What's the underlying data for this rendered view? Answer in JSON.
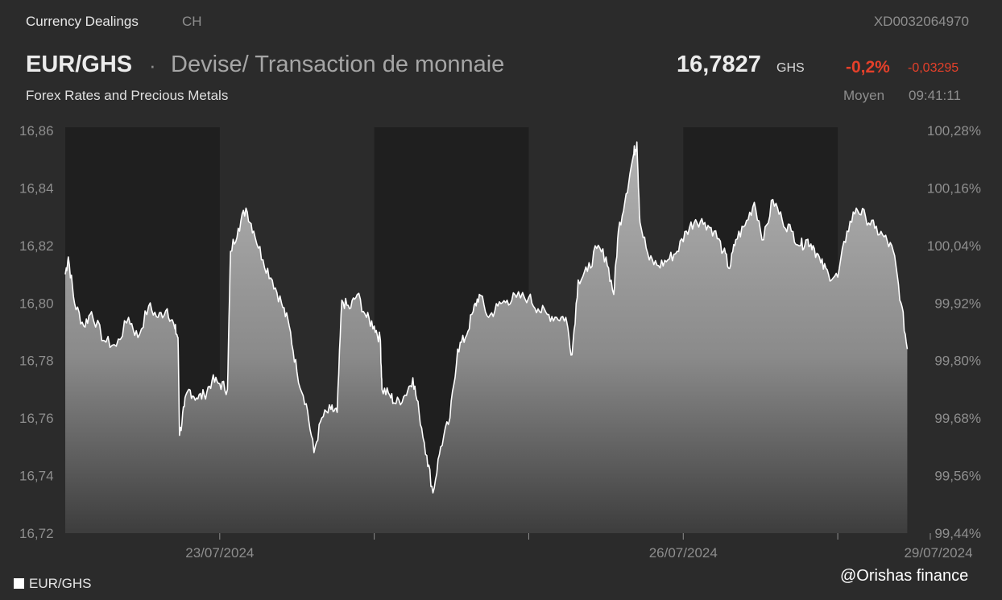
{
  "header": {
    "category": "Currency Dealings",
    "exchange": "CH",
    "isin": "XD0032064970",
    "pair": "EUR/GHS",
    "separator": "·",
    "instrument_type": "Devise/ Transaction de monnaie",
    "subtitle": "Forex Rates and Precious Metals",
    "price": "16,7827",
    "currency": "GHS",
    "change_pct": "-0,2%",
    "change_abs": "-0,03295",
    "price_type": "Moyen",
    "time": "09:41:11"
  },
  "colors": {
    "background": "#2b2b2b",
    "shade_band": "#1f1f1f",
    "line": "#ffffff",
    "negative": "#e5402a",
    "muted_text": "#8e8e8e"
  },
  "watermark": "@Orishas finance",
  "chart_data": {
    "type": "area",
    "ylim": [
      16.72,
      16.86
    ],
    "y_ticks_left": [
      "16,86",
      "16,84",
      "16,82",
      "16,80",
      "16,78",
      "16,76",
      "16,74",
      "16,72"
    ],
    "y_ticks_right": [
      "100,28%",
      "100,16%",
      "100,04%",
      "99,92%",
      "99,80%",
      "99,68%",
      "99,56%",
      "99,44%"
    ],
    "x_tick_labels": [
      {
        "label": "23/07/2024",
        "session": 1
      },
      {
        "label": "26/07/2024",
        "session": 4
      },
      {
        "label": "29/07/2024",
        "session": 5.9
      }
    ],
    "sessions": 5.5,
    "shaded_sessions": [
      0,
      2,
      4
    ],
    "legend": [
      {
        "name": "EUR/GHS",
        "color": "#ffffff"
      }
    ],
    "series": [
      {
        "name": "EUR/GHS",
        "anchors": [
          [
            0.0,
            16.81
          ],
          [
            0.02,
            16.816
          ],
          [
            0.06,
            16.8
          ],
          [
            0.12,
            16.792
          ],
          [
            0.17,
            16.797
          ],
          [
            0.25,
            16.787
          ],
          [
            0.33,
            16.785
          ],
          [
            0.41,
            16.795
          ],
          [
            0.47,
            16.788
          ],
          [
            0.54,
            16.799
          ],
          [
            0.6,
            16.795
          ],
          [
            0.66,
            16.798
          ],
          [
            0.71,
            16.791
          ],
          [
            0.73,
            16.788
          ],
          [
            0.74,
            16.754
          ],
          [
            0.77,
            16.764
          ],
          [
            0.8,
            16.77
          ],
          [
            0.85,
            16.767
          ],
          [
            0.9,
            16.768
          ],
          [
            0.95,
            16.773
          ],
          [
            1.0,
            16.772
          ],
          [
            1.05,
            16.77
          ],
          [
            1.07,
            16.818
          ],
          [
            1.12,
            16.826
          ],
          [
            1.17,
            16.833
          ],
          [
            1.22,
            16.825
          ],
          [
            1.28,
            16.815
          ],
          [
            1.34,
            16.808
          ],
          [
            1.4,
            16.8
          ],
          [
            1.45,
            16.792
          ],
          [
            1.5,
            16.776
          ],
          [
            1.56,
            16.765
          ],
          [
            1.61,
            16.748
          ],
          [
            1.66,
            16.76
          ],
          [
            1.72,
            16.763
          ],
          [
            1.76,
            16.762
          ],
          [
            1.79,
            16.801
          ],
          [
            1.84,
            16.798
          ],
          [
            1.89,
            16.803
          ],
          [
            1.95,
            16.795
          ],
          [
            2.0,
            16.792
          ],
          [
            2.04,
            16.787
          ],
          [
            2.05,
            16.77
          ],
          [
            2.1,
            16.768
          ],
          [
            2.14,
            16.765
          ],
          [
            2.2,
            16.768
          ],
          [
            2.25,
            16.774
          ],
          [
            2.29,
            16.762
          ],
          [
            2.34,
            16.747
          ],
          [
            2.38,
            16.734
          ],
          [
            2.43,
            16.75
          ],
          [
            2.49,
            16.76
          ],
          [
            2.54,
            16.784
          ],
          [
            2.59,
            16.788
          ],
          [
            2.64,
            16.797
          ],
          [
            2.68,
            16.803
          ],
          [
            2.74,
            16.795
          ],
          [
            2.8,
            16.799
          ],
          [
            2.86,
            16.801
          ],
          [
            2.92,
            16.802
          ],
          [
            3.0,
            16.802
          ],
          [
            3.06,
            16.798
          ],
          [
            3.12,
            16.796
          ],
          [
            3.18,
            16.795
          ],
          [
            3.24,
            16.795
          ],
          [
            3.28,
            16.782
          ],
          [
            3.32,
            16.808
          ],
          [
            3.38,
            16.811
          ],
          [
            3.44,
            16.819
          ],
          [
            3.5,
            16.816
          ],
          [
            3.55,
            16.803
          ],
          [
            3.58,
            16.825
          ],
          [
            3.63,
            16.838
          ],
          [
            3.68,
            16.852
          ],
          [
            3.7,
            16.856
          ],
          [
            3.72,
            16.828
          ],
          [
            3.78,
            16.815
          ],
          [
            3.84,
            16.813
          ],
          [
            3.9,
            16.815
          ],
          [
            3.96,
            16.818
          ],
          [
            4.02,
            16.825
          ],
          [
            4.08,
            16.829
          ],
          [
            4.14,
            16.828
          ],
          [
            4.2,
            16.825
          ],
          [
            4.26,
            16.818
          ],
          [
            4.3,
            16.812
          ],
          [
            4.34,
            16.822
          ],
          [
            4.4,
            16.827
          ],
          [
            4.46,
            16.835
          ],
          [
            4.52,
            16.822
          ],
          [
            4.58,
            16.836
          ],
          [
            4.64,
            16.829
          ],
          [
            4.7,
            16.825
          ],
          [
            4.76,
            16.82
          ],
          [
            4.8,
            16.822
          ],
          [
            4.84,
            16.82
          ],
          [
            4.89,
            16.814
          ],
          [
            4.94,
            16.81
          ],
          [
            5.0,
            16.809
          ],
          [
            5.06,
            16.825
          ],
          [
            5.12,
            16.833
          ],
          [
            5.18,
            16.83
          ],
          [
            5.24,
            16.826
          ],
          [
            5.3,
            16.823
          ],
          [
            5.36,
            16.818
          ],
          [
            5.41,
            16.8
          ],
          [
            5.45,
            16.784
          ]
        ]
      }
    ]
  }
}
